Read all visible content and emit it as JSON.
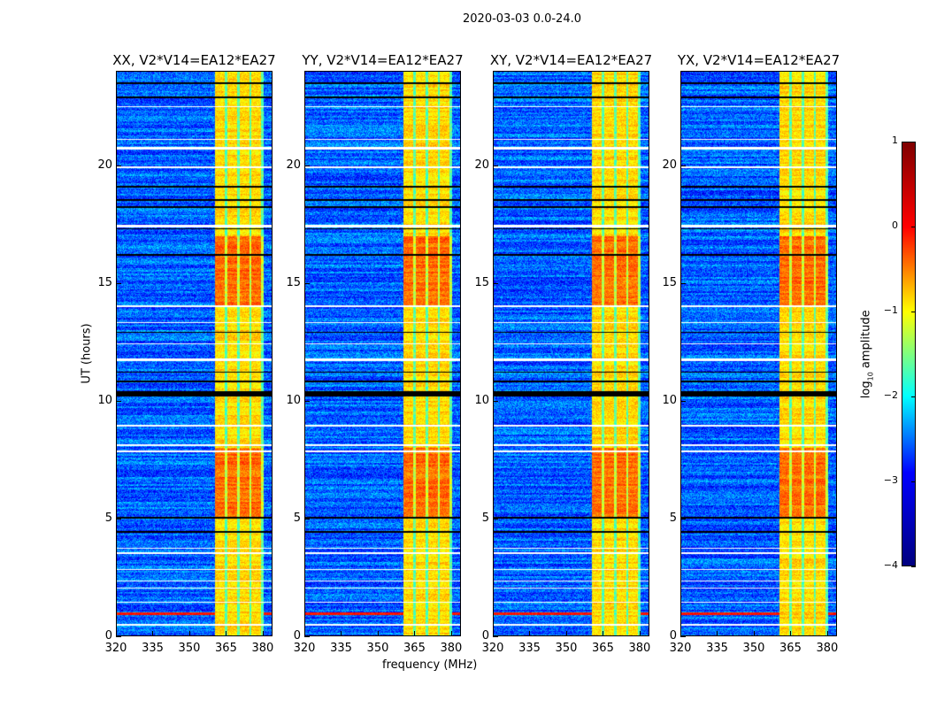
{
  "suptitle": "2020-03-03 0.0-24.0",
  "chart_data": {
    "type": "heatmap",
    "xlabel": "frequency (MHz)",
    "ylabel": "UT (hours)",
    "xlim": [
      320,
      384
    ],
    "ylim": [
      0,
      24
    ],
    "xticks": [
      "320",
      "335",
      "350",
      "365",
      "380"
    ],
    "xtick_values": [
      320,
      335,
      350,
      365,
      380
    ],
    "yticks": [
      "0",
      "5",
      "10",
      "15",
      "20"
    ],
    "ytick_values": [
      0,
      5,
      10,
      15,
      20
    ],
    "panels": [
      {
        "title": "XX, V2*V14=EA12*EA27",
        "seed": 11
      },
      {
        "title": "YY, V2*V14=EA12*EA27",
        "seed": 23
      },
      {
        "title": "XY, V2*V14=EA12*EA27",
        "seed": 37
      },
      {
        "title": "YX, V2*V14=EA12*EA27",
        "seed": 51
      }
    ],
    "colorbar": {
      "label_main": "log",
      "label_sub": "10",
      "label_rest": " amplitude",
      "range": [
        -4,
        1
      ],
      "ticks": [
        "1",
        "0",
        "−1",
        "−2",
        "−3",
        "−4"
      ],
      "tick_values": [
        1,
        0,
        -1,
        -2,
        -3,
        -4
      ],
      "colormap": "jet"
    },
    "background_level": -2.9,
    "strong_band_mhz": [
      360.4,
      380.7
    ],
    "subband_edges_mhz": [
      365,
      370,
      375,
      380
    ],
    "band_level": -0.7,
    "hot_hours": [
      [
        5.0,
        8.0
      ],
      [
        14.0,
        17.0
      ]
    ],
    "hot_level": -0.15,
    "rfi_line_hour": 0.95,
    "white_flag_hours": [
      [
        0.45,
        0.5
      ],
      [
        1.4,
        1.45
      ],
      [
        2.0,
        2.06
      ],
      [
        2.3,
        2.36
      ],
      [
        2.8,
        2.86
      ],
      [
        3.5,
        3.56
      ],
      [
        3.7,
        3.76
      ],
      [
        7.8,
        7.9
      ],
      [
        8.1,
        8.16
      ],
      [
        8.9,
        9.0
      ],
      [
        11.7,
        11.8
      ],
      [
        12.4,
        12.46
      ],
      [
        13.3,
        13.36
      ],
      [
        14.0,
        14.06
      ],
      [
        17.4,
        17.5
      ],
      [
        19.9,
        20.0
      ],
      [
        20.7,
        20.8
      ],
      [
        21.1,
        21.16
      ],
      [
        22.5,
        22.56
      ]
    ],
    "black_flag_hours": [
      [
        10.2,
        10.4
      ],
      [
        17.3,
        17.36
      ],
      [
        18.2,
        18.3
      ],
      [
        18.5,
        18.6
      ],
      [
        19.1,
        19.16
      ],
      [
        16.2,
        16.26
      ],
      [
        5.0,
        5.06
      ],
      [
        4.4,
        4.46
      ],
      [
        10.8,
        10.86
      ],
      [
        11.2,
        11.26
      ],
      [
        12.9,
        12.96
      ],
      [
        22.9,
        22.96
      ],
      [
        23.5,
        23.56
      ]
    ]
  }
}
